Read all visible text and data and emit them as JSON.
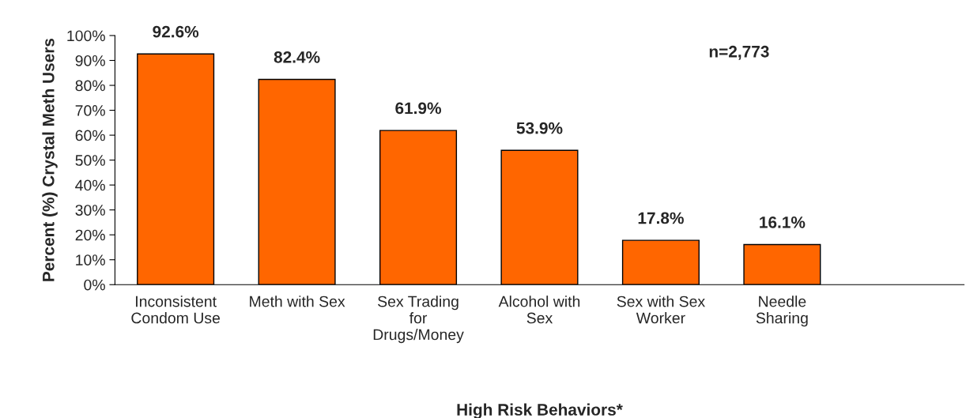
{
  "chart_data": {
    "type": "bar",
    "categories": [
      "Inconsistent\nCondom Use",
      "Meth with Sex",
      "Sex Trading\nfor\nDrugs/Money",
      "Alcohol with\nSex",
      "Sex with Sex\nWorker",
      "Needle\nSharing",
      null
    ],
    "values": [
      92.6,
      82.4,
      61.9,
      53.9,
      17.8,
      16.1,
      null
    ],
    "value_labels": [
      "92.6%",
      "82.4%",
      "61.9%",
      "53.9%",
      "17.8%",
      "16.1%",
      null
    ],
    "color": "#ff6600",
    "xlabel": "High Risk Behaviors*",
    "ylabel": "Percent (%) Crystal Meth Users",
    "annotations": [
      "n=2,773"
    ],
    "ylim": [
      0,
      100
    ],
    "yticks": [
      {
        "value": 0,
        "label": "0%"
      },
      {
        "value": 10,
        "label": "10%"
      },
      {
        "value": 20,
        "label": "20%"
      },
      {
        "value": 30,
        "label": "30%"
      },
      {
        "value": 40,
        "label": "40%"
      },
      {
        "value": 50,
        "label": "50%"
      },
      {
        "value": 60,
        "label": "60%"
      },
      {
        "value": 70,
        "label": "70%"
      },
      {
        "value": 80,
        "label": "80%"
      },
      {
        "value": 90,
        "label": "90%"
      },
      {
        "value": 100,
        "label": "100%"
      }
    ],
    "grid": false,
    "legend": false
  }
}
